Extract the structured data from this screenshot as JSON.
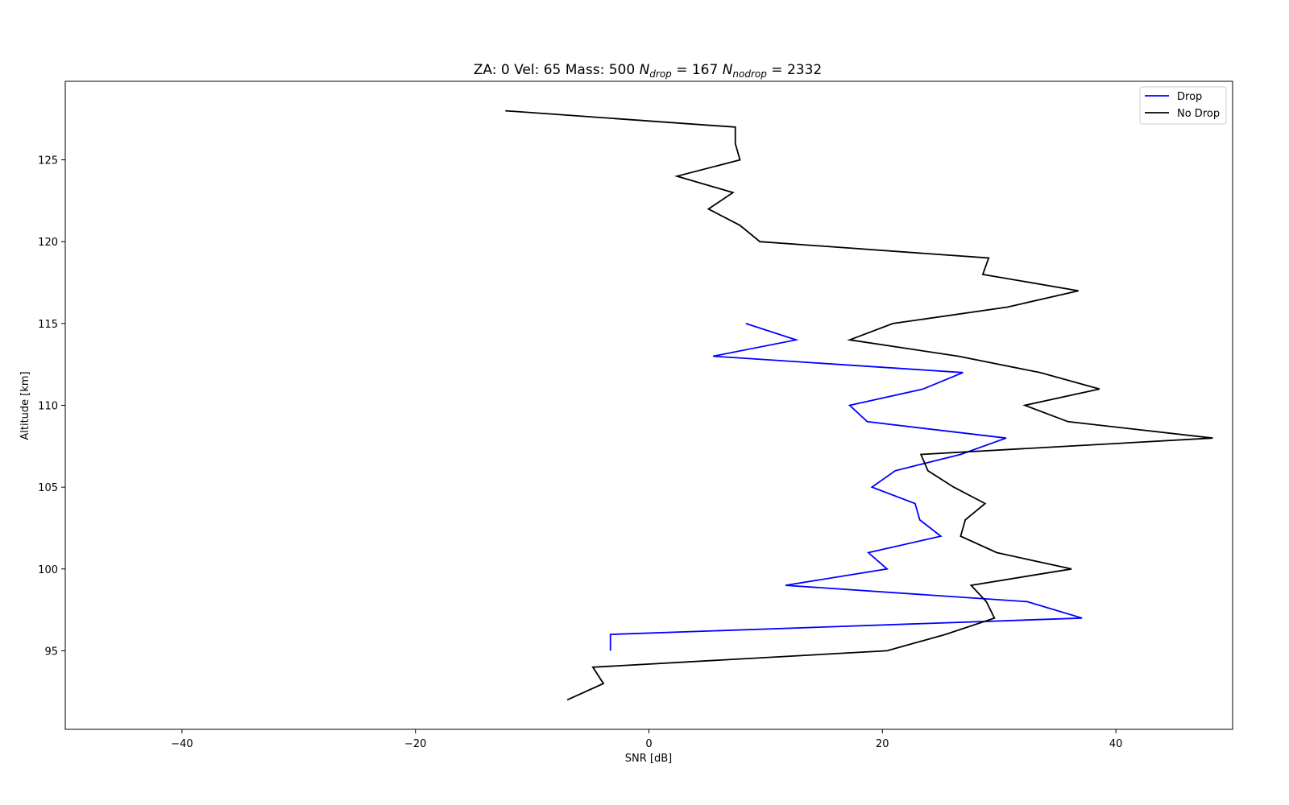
{
  "chart_data": {
    "type": "line",
    "title": {
      "prefix": "ZA: 0 Vel: 65 Mass: 500 ",
      "n_drop_symbol": "N",
      "n_drop_subscript": "drop",
      "n_drop_value": " = 167 ",
      "n_nodrop_symbol": "N",
      "n_nodrop_subscript": "nodrop",
      "n_nodrop_value": " = 2332"
    },
    "xlabel": "SNR [dB]",
    "ylabel": "Altitude [km]",
    "xlim": [
      -50,
      50
    ],
    "ylim": [
      90.2,
      129.8
    ],
    "xticks": [
      -40,
      -20,
      0,
      20,
      40
    ],
    "xtick_labels": [
      "−40",
      "−20",
      "0",
      "20",
      "40"
    ],
    "yticks": [
      95,
      100,
      105,
      110,
      115,
      120,
      125
    ],
    "ytick_labels": [
      "95",
      "100",
      "105",
      "110",
      "115",
      "120",
      "125"
    ],
    "grid": false,
    "legend_position": "top-right",
    "series": [
      {
        "name": "Drop",
        "color": "#0000ff",
        "points": [
          [
            -3.3,
            95
          ],
          [
            -3.3,
            96
          ],
          [
            37.1,
            97
          ],
          [
            32.4,
            98
          ],
          [
            11.7,
            99
          ],
          [
            20.4,
            100
          ],
          [
            18.8,
            101
          ],
          [
            25.0,
            102
          ],
          [
            23.2,
            103
          ],
          [
            22.8,
            104
          ],
          [
            19.1,
            105
          ],
          [
            21.1,
            106
          ],
          [
            26.7,
            107
          ],
          [
            30.6,
            108
          ],
          [
            18.7,
            109
          ],
          [
            17.2,
            110
          ],
          [
            23.5,
            111
          ],
          [
            26.9,
            112
          ],
          [
            5.5,
            113
          ],
          [
            12.6,
            114
          ],
          [
            8.3,
            115
          ]
        ]
      },
      {
        "name": "No Drop",
        "color": "#000000",
        "points": [
          [
            -7.0,
            92
          ],
          [
            -3.9,
            93
          ],
          [
            -4.8,
            94
          ],
          [
            20.4,
            95
          ],
          [
            25.4,
            96
          ],
          [
            29.6,
            97
          ],
          [
            28.9,
            98
          ],
          [
            27.6,
            99
          ],
          [
            36.2,
            100
          ],
          [
            29.8,
            101
          ],
          [
            26.7,
            102
          ],
          [
            27.1,
            103
          ],
          [
            28.8,
            104
          ],
          [
            26.1,
            105
          ],
          [
            23.9,
            106
          ],
          [
            23.3,
            107
          ],
          [
            48.3,
            108
          ],
          [
            35.9,
            109
          ],
          [
            32.2,
            110
          ],
          [
            38.6,
            111
          ],
          [
            33.5,
            112
          ],
          [
            26.5,
            113
          ],
          [
            17.2,
            114
          ],
          [
            20.9,
            115
          ],
          [
            30.7,
            116
          ],
          [
            36.8,
            117
          ],
          [
            28.6,
            118
          ],
          [
            29.1,
            119
          ],
          [
            9.5,
            120
          ],
          [
            7.8,
            121
          ],
          [
            5.1,
            122
          ],
          [
            7.2,
            123
          ],
          [
            2.4,
            124
          ],
          [
            7.8,
            125
          ],
          [
            7.4,
            126
          ],
          [
            7.4,
            127
          ],
          [
            -12.3,
            128
          ]
        ]
      }
    ]
  }
}
